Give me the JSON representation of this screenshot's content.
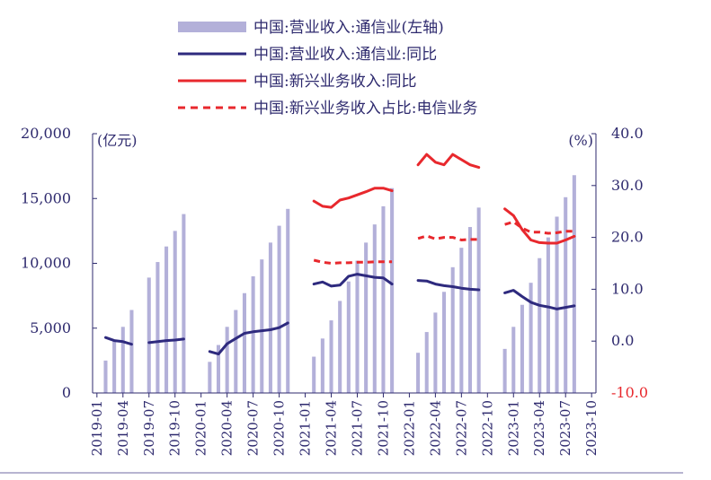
{
  "chart_data": {
    "type": "bar+line",
    "title": "",
    "left_unit": "(亿元)",
    "right_unit": "(%)",
    "left_axis": {
      "ticks": [
        "20,000",
        "15,000",
        "10,000",
        "5,000",
        "0"
      ],
      "ylim": [
        0,
        20000
      ]
    },
    "right_axis": {
      "ticks": [
        "40.0",
        "30.0",
        "20.0",
        "10.0",
        "0.0",
        "-10.0"
      ],
      "ylim": [
        -10,
        40
      ],
      "negative_color": "#e8282d"
    },
    "x_tick_labels": [
      "2019-01",
      "2019-04",
      "2019-07",
      "2019-10",
      "2020-01",
      "2020-04",
      "2020-07",
      "2020-10",
      "2021-01",
      "2021-04",
      "2021-07",
      "2021-10",
      "2022-01",
      "2022-04",
      "2022-07",
      "2022-10",
      "2023-01",
      "2023-04",
      "2023-07",
      "2023-10"
    ],
    "x_tick_index": [
      0,
      3,
      6,
      9,
      12,
      15,
      18,
      21,
      24,
      27,
      30,
      33,
      36,
      39,
      42,
      45,
      48,
      51,
      54,
      57
    ],
    "n_periods": 58,
    "legend": [
      {
        "label": "中国:营业收入:通信业(左轴)",
        "kind": "bar",
        "color": "#b3b0d9"
      },
      {
        "label": "中国:营业收入:通信业:同比",
        "kind": "line",
        "color": "#2e2a7e"
      },
      {
        "label": "中国:新兴业务收入:同比",
        "kind": "line",
        "color": "#e8282d"
      },
      {
        "label": "中国:新兴业务收入占比:电信业务",
        "kind": "dash",
        "color": "#e8282d"
      }
    ],
    "series": [
      {
        "name": "中国:营业收入:通信业(左轴)",
        "axis": "left",
        "kind": "bar",
        "color": "#b3b0d9",
        "values": [
          null,
          2500,
          4000,
          5100,
          6400,
          null,
          8900,
          10100,
          11300,
          12500,
          13800,
          null,
          null,
          2400,
          3700,
          5100,
          6400,
          7700,
          9000,
          10300,
          11600,
          12900,
          14200,
          null,
          null,
          2800,
          4200,
          5600,
          7100,
          8600,
          10200,
          11600,
          13000,
          14400,
          15800,
          null,
          null,
          3100,
          4700,
          6200,
          7800,
          9700,
          11200,
          12800,
          14300,
          null,
          null,
          3400,
          5100,
          6800,
          8500,
          10400,
          12000,
          13600,
          15100,
          16800
        ]
      },
      {
        "name": "中国:营业收入:通信业:同比",
        "axis": "right",
        "kind": "line",
        "color": "#2e2a7e",
        "values": [
          null,
          0.7,
          0.1,
          -0.1,
          -0.6,
          null,
          -0.3,
          -0.1,
          0.1,
          0.2,
          0.4,
          null,
          null,
          -2.0,
          -2.5,
          -0.5,
          0.5,
          1.5,
          1.8,
          2.0,
          2.2,
          2.6,
          3.5,
          null,
          null,
          11.0,
          11.4,
          10.6,
          10.8,
          12.5,
          12.9,
          12.6,
          12.3,
          12.2,
          11.0,
          null,
          null,
          11.7,
          11.6,
          11.0,
          10.7,
          10.5,
          10.2,
          10.0,
          9.9,
          null,
          null,
          9.3,
          9.8,
          8.6,
          7.5,
          6.9,
          6.6,
          6.2,
          6.5,
          6.8
        ]
      },
      {
        "name": "中国:新兴业务收入:同比",
        "axis": "right",
        "kind": "line",
        "color": "#e8282d",
        "values": [
          null,
          null,
          null,
          null,
          null,
          null,
          null,
          null,
          null,
          null,
          null,
          null,
          null,
          null,
          null,
          null,
          null,
          null,
          null,
          null,
          null,
          null,
          null,
          null,
          null,
          27.0,
          26.0,
          25.8,
          27.2,
          27.6,
          28.2,
          28.8,
          29.5,
          29.5,
          29.0,
          null,
          null,
          34.0,
          36.0,
          34.5,
          34.0,
          36.0,
          35.0,
          34.0,
          33.5,
          null,
          null,
          25.5,
          24.2,
          21.5,
          19.5,
          19.0,
          18.9,
          18.9,
          19.5,
          20.2
        ]
      },
      {
        "name": "中国:新兴业务收入占比:电信业务",
        "axis": "right",
        "kind": "dash",
        "color": "#e8282d",
        "values": [
          null,
          null,
          null,
          null,
          null,
          null,
          null,
          null,
          null,
          null,
          null,
          null,
          null,
          null,
          null,
          null,
          null,
          null,
          null,
          null,
          null,
          null,
          null,
          null,
          null,
          15.6,
          15.2,
          15.0,
          15.1,
          15.1,
          15.2,
          15.2,
          15.3,
          15.3,
          15.3,
          null,
          null,
          19.8,
          20.3,
          19.7,
          20.0,
          20.0,
          19.5,
          19.6,
          19.6,
          null,
          null,
          22.5,
          23.0,
          21.8,
          21.0,
          21.0,
          20.8,
          20.9,
          21.2,
          21.2
        ]
      }
    ]
  }
}
